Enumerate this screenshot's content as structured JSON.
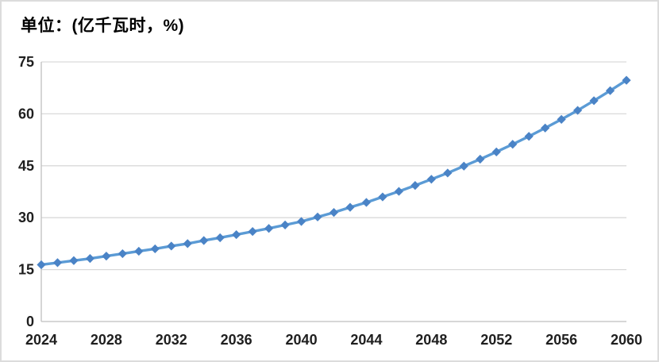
{
  "title": "单位：(亿千瓦时，%)",
  "chart_data": {
    "type": "line",
    "title": "单位：(亿千瓦时，%)",
    "x": [
      2024,
      2025,
      2026,
      2027,
      2028,
      2029,
      2030,
      2031,
      2032,
      2033,
      2034,
      2035,
      2036,
      2037,
      2038,
      2039,
      2040,
      2041,
      2042,
      2043,
      2044,
      2045,
      2046,
      2047,
      2048,
      2049,
      2050,
      2051,
      2052,
      2053,
      2054,
      2055,
      2056,
      2057,
      2058,
      2059,
      2060
    ],
    "values": [
      16.4,
      17.0,
      17.6,
      18.2,
      18.9,
      19.6,
      20.3,
      21.0,
      21.8,
      22.5,
      23.4,
      24.2,
      25.1,
      26.0,
      26.9,
      27.9,
      28.9,
      30.2,
      31.5,
      33.0,
      34.4,
      36.0,
      37.6,
      39.3,
      41.1,
      42.9,
      44.9,
      46.9,
      49.0,
      51.2,
      53.5,
      55.9,
      58.4,
      61.0,
      63.8,
      66.7,
      69.7
    ],
    "x_tick_labels": [
      "2024",
      "2028",
      "2032",
      "2036",
      "2040",
      "2044",
      "2048",
      "2052",
      "2056",
      "2060"
    ],
    "y_ticks": [
      0,
      15,
      30,
      45,
      60,
      75
    ],
    "ylim": [
      0,
      75
    ],
    "xlabel": "",
    "ylabel": "",
    "grid": "horizontal",
    "legend": "none",
    "marker": "diamond",
    "line_color": "#5B9BD5",
    "marker_color": "#4A83C6",
    "gridline_color": "#D9D9D9",
    "axis_color": "#BFBFBF",
    "tick_label_color": "#1f1f1f"
  }
}
